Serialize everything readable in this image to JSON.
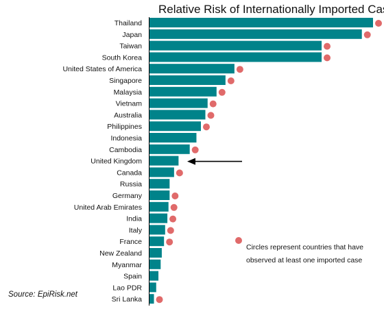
{
  "chart_data": {
    "type": "bar",
    "orientation": "horizontal",
    "title": "Relative Risk of Internationally Imported Cases",
    "categories": [
      "Thailand",
      "Japan",
      "Taiwan",
      "South Korea",
      "United States of America",
      "Singapore",
      "Malaysia",
      "Vietnam",
      "Australia",
      "Philippines",
      "Indonesia",
      "Cambodia",
      "United Kingdom",
      "Canada",
      "Russia",
      "Germany",
      "United Arab Emirates",
      "India",
      "Italy",
      "France",
      "New Zealand",
      "Myanmar",
      "Spain",
      "Lao PDR",
      "Sri Lanka"
    ],
    "values": [
      100,
      95,
      77,
      77,
      38,
      34,
      30,
      26,
      25,
      23,
      21,
      18,
      13,
      11,
      9,
      9,
      8.5,
      8,
      7,
      6.5,
      5.5,
      5,
      4,
      3,
      2
    ],
    "xlim": [
      0,
      100
    ],
    "observed_imported_case": [
      true,
      true,
      true,
      true,
      true,
      true,
      true,
      true,
      true,
      true,
      false,
      true,
      false,
      true,
      false,
      true,
      true,
      true,
      true,
      true,
      false,
      false,
      false,
      false,
      true
    ],
    "highlighted_category": "United Kingdom",
    "legend": {
      "marker": "circle",
      "label_line1": "Circles represent countries that have",
      "label_line2": "observed at least one imported case"
    },
    "source": "Source: EpiRisk.net",
    "colors": {
      "bar": "#00838a",
      "dot": "#e06a6a",
      "arrow": "#000000",
      "axis": "#000000"
    }
  }
}
